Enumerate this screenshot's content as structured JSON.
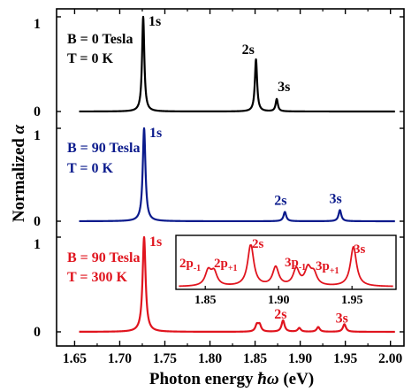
{
  "chart_data": {
    "type": "line",
    "xlabel_prefix": "Photon energy ",
    "xlabel_symbol": "ħω",
    "xlabel_suffix": " (eV)",
    "ylabel_prefix": "Normalized ",
    "ylabel_symbol": "α",
    "xlim": [
      1.63,
      2.015
    ],
    "xticks": [
      "1.65",
      "1.70",
      "1.75",
      "1.80",
      "1.85",
      "1.90",
      "1.95",
      "2.00"
    ],
    "ylim": [
      0,
      1.05
    ],
    "colors": {
      "black": "#000000",
      "blue": "#0a1a8c",
      "red": "#e0141e"
    },
    "panels": [
      {
        "conditions": [
          "B = 0 Tesla",
          "T = 0 K"
        ],
        "color": "#000000",
        "ytick_top": "1",
        "ytick_bottom": "0",
        "peaks": [
          {
            "label": "1s",
            "x": 1.726,
            "y": 1.0
          },
          {
            "label": "2s",
            "x": 1.851,
            "y": 0.55
          },
          {
            "label": "3s",
            "x": 1.874,
            "y": 0.13
          }
        ],
        "width": 0.0015
      },
      {
        "conditions": [
          "B = 90 Tesla",
          "T = 0 K"
        ],
        "color": "#0a1a8c",
        "ytick_top": "1",
        "ytick_bottom": "0",
        "peaks": [
          {
            "label": "1s",
            "x": 1.727,
            "y": 1.0
          },
          {
            "label": "2s",
            "x": 1.883,
            "y": 0.1
          },
          {
            "label": "3s",
            "x": 1.944,
            "y": 0.12
          }
        ],
        "width": 0.0018
      },
      {
        "conditions": [
          "B = 90 Tesla",
          "T = 300 K"
        ],
        "color": "#e0141e",
        "ytick_top": "1",
        "ytick_bottom": "0",
        "peaks": [
          {
            "label": "1s",
            "x": 1.727,
            "y": 1.0
          },
          {
            "label": "",
            "x": 1.852,
            "y": 0.07
          },
          {
            "label": "",
            "x": 1.855,
            "y": 0.07
          },
          {
            "label": "2s",
            "x": 1.881,
            "y": 0.12
          },
          {
            "label": "",
            "x": 1.899,
            "y": 0.04
          },
          {
            "label": "",
            "x": 1.92,
            "y": 0.05
          },
          {
            "label": "3s",
            "x": 1.949,
            "y": 0.08
          }
        ],
        "width": 0.002
      }
    ],
    "inset": {
      "xlim": [
        1.83,
        1.98
      ],
      "xticks": [
        "1.85",
        "1.90",
        "1.95"
      ],
      "color": "#e0141e",
      "peaks": [
        {
          "label": "2p",
          "sub": "-1",
          "x": 1.852,
          "y": 0.35
        },
        {
          "label": "2p",
          "sub": "+1",
          "x": 1.856,
          "y": 0.32
        },
        {
          "label": "2s",
          "sub": "",
          "x": 1.881,
          "y": 1.0
        },
        {
          "label": "",
          "sub": "",
          "x": 1.898,
          "y": 0.45
        },
        {
          "label": "3p",
          "sub": "-1",
          "x": 1.912,
          "y": 0.4
        },
        {
          "label": "",
          "sub": "",
          "x": 1.924,
          "y": 0.28
        },
        {
          "label": "3p",
          "sub": "+1",
          "x": 1.92,
          "y": 0.4
        },
        {
          "label": "3s",
          "sub": "",
          "x": 1.951,
          "y": 0.95
        }
      ],
      "width": 0.0025
    }
  }
}
